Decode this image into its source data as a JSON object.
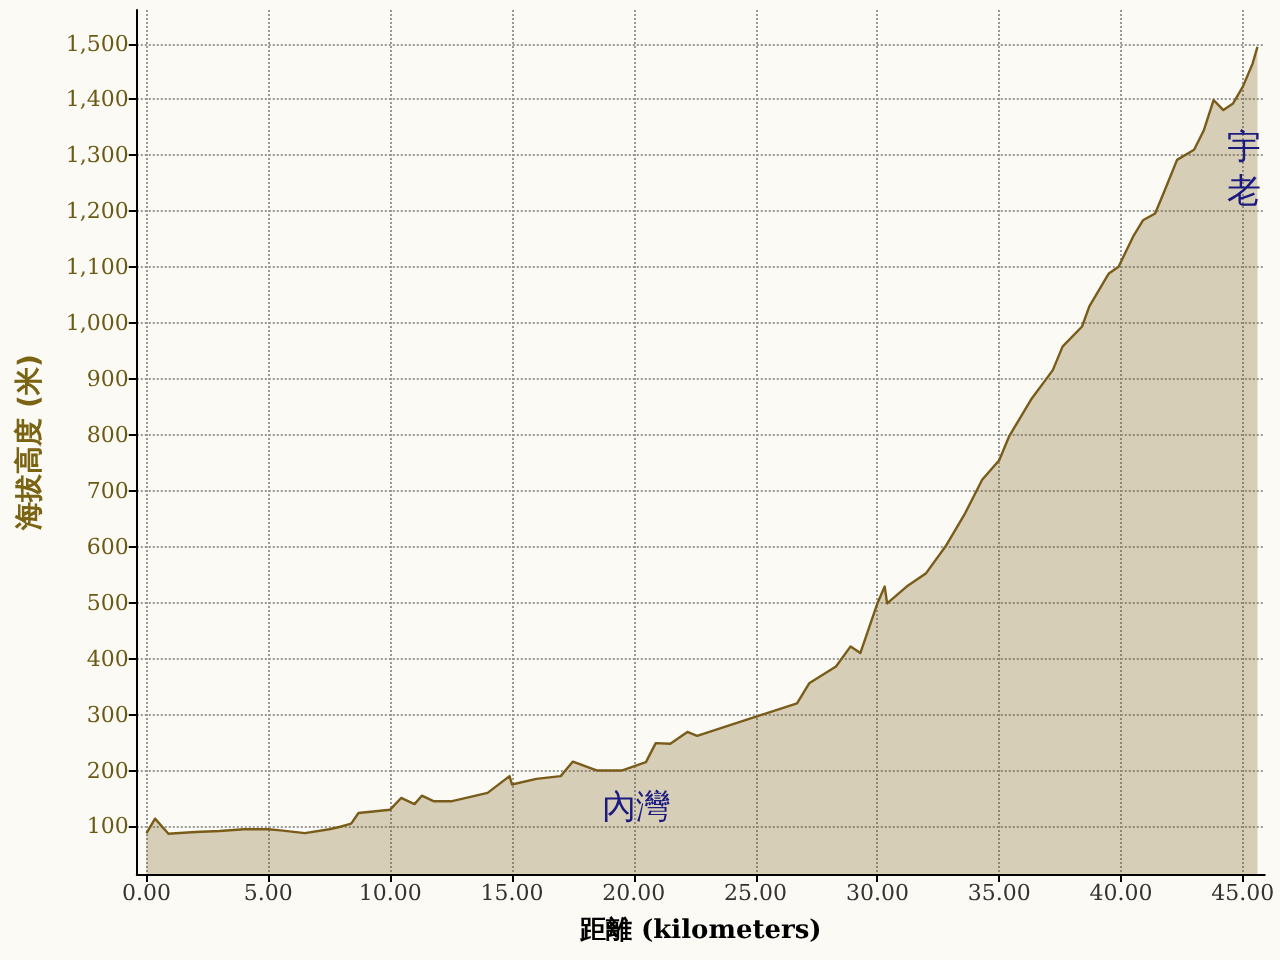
{
  "chart_data": {
    "type": "area",
    "xlabel": "距離 (kilometers)",
    "ylabel": "海拔高度 (米)",
    "x": [
      0,
      0.35,
      0.9,
      2,
      3,
      4,
      5,
      5.5,
      6.5,
      7.5,
      8,
      8.4,
      8.7,
      10,
      10.45,
      11,
      11.3,
      11.8,
      12.5,
      14,
      14.9,
      15,
      16,
      17,
      17.5,
      18.5,
      19.5,
      20.5,
      20.9,
      21.5,
      22.2,
      22.6,
      25.05,
      26.7,
      27.2,
      28.3,
      28.9,
      29.3,
      30.0,
      30.3,
      30.4,
      31.2,
      32.0,
      32.8,
      33.6,
      34.3,
      35.0,
      35.4,
      36.3,
      37.2,
      37.6,
      38.4,
      38.7,
      39.5,
      39.9,
      40.5,
      40.9,
      41.4,
      41.8,
      42.3,
      43.0,
      43.4,
      43.8,
      44.2,
      44.6,
      45.0,
      45.4,
      45.6
    ],
    "series": [
      {
        "color": "#7a5c1a",
        "values": [
          88,
          114,
          87,
          90,
          92,
          95,
          95,
          93,
          88,
          95,
          100,
          105,
          124,
          130,
          151,
          140,
          155,
          145,
          145,
          160,
          190,
          175,
          185,
          190,
          216,
          200,
          200,
          215,
          249,
          248,
          269,
          262,
          297,
          320,
          356,
          386,
          422,
          410,
          499,
          529,
          499,
          529,
          553,
          601,
          660,
          720,
          755,
          797,
          863,
          916,
          958,
          994,
          1030,
          1089,
          1101,
          1155,
          1184,
          1196,
          1238,
          1292,
          1310,
          1345,
          1399,
          1381,
          1393,
          1423,
          1464,
          1494
        ]
      }
    ],
    "xlim": [
      -0.4,
      45.9
    ],
    "ylim": [
      15,
      1560
    ],
    "xticks": [
      {
        "value": 0,
        "label": "0.00"
      },
      {
        "value": 5,
        "label": "5.00"
      },
      {
        "value": 10,
        "label": "10.00"
      },
      {
        "value": 15,
        "label": "15.00"
      },
      {
        "value": 20,
        "label": "20.00"
      },
      {
        "value": 25,
        "label": "25.00"
      },
      {
        "value": 30,
        "label": "30.00"
      },
      {
        "value": 35,
        "label": "35.00"
      },
      {
        "value": 40,
        "label": "40.00"
      },
      {
        "value": 45,
        "label": "45.00"
      }
    ],
    "yticks": [
      100,
      200,
      300,
      400,
      500,
      600,
      700,
      800,
      900,
      {
        "value": 1000,
        "label": "1,000"
      },
      {
        "value": 1100,
        "label": "1,100"
      },
      {
        "value": 1200,
        "label": "1,200"
      },
      {
        "value": 1300,
        "label": "1,300"
      },
      {
        "value": 1400,
        "label": "1,400"
      },
      {
        "value": 1500,
        "label": "1,500"
      }
    ],
    "grid": true,
    "marker": "none",
    "line_style": "solid",
    "annotations": [
      "內灣",
      "宇老"
    ]
  }
}
